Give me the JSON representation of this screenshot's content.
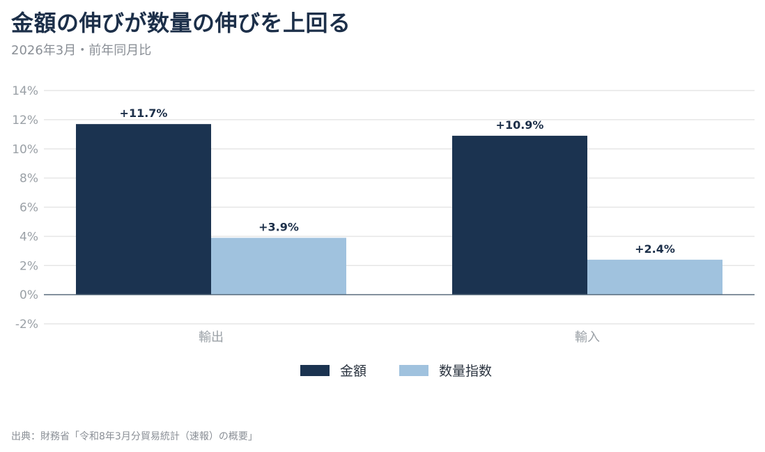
{
  "header": {
    "title": "金額の伸びが数量の伸びを上回る",
    "subtitle": "2026年3月・前年同月比"
  },
  "footer": {
    "source": "出典：財務省「令和8年3月分貿易統計（速報）の概要」"
  },
  "colors": {
    "series_amount": "#1b3350",
    "series_volume": "#a0c2de",
    "grid": "#e6e6e6",
    "axis": "#5a6c7d"
  },
  "chart_data": {
    "type": "bar",
    "categories": [
      "輸出",
      "輸入"
    ],
    "series": [
      {
        "name": "金額",
        "values": [
          11.7,
          10.9
        ],
        "labels": [
          "+11.7%",
          "+10.9%"
        ]
      },
      {
        "name": "数量指数",
        "values": [
          3.9,
          2.4
        ],
        "labels": [
          "+3.9%",
          "+2.4%"
        ]
      }
    ],
    "ylim": [
      -2,
      14
    ],
    "yticks": [
      -2,
      0,
      2,
      4,
      6,
      8,
      10,
      12,
      14
    ],
    "ytick_labels": [
      "-2%",
      "0%",
      "2%",
      "4%",
      "6%",
      "8%",
      "10%",
      "12%",
      "14%"
    ],
    "grid": true,
    "legend": "bottom-center"
  }
}
